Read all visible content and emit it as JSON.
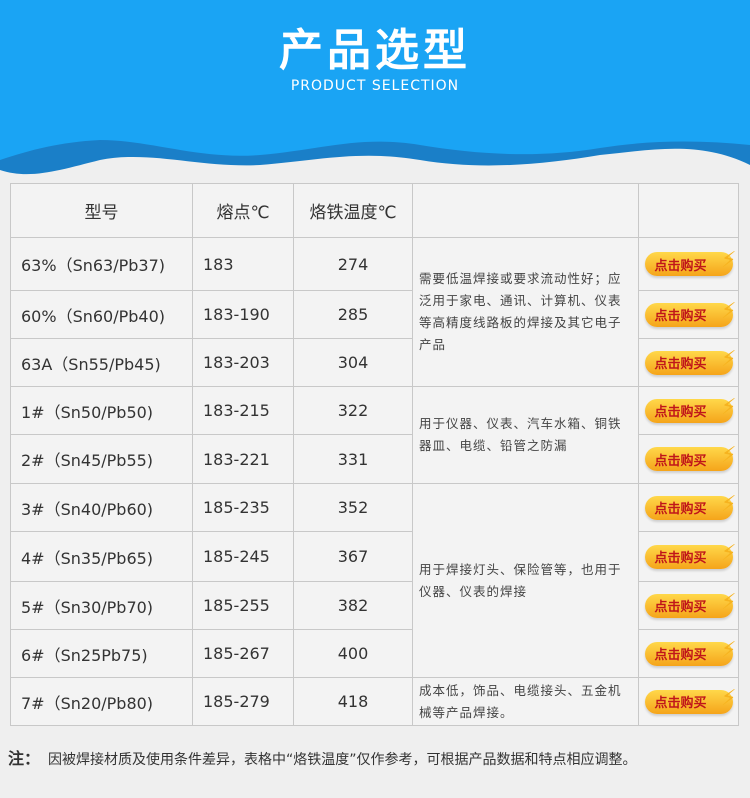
{
  "header": {
    "title": "产品选型",
    "subtitle": "PRODUCT SELECTION"
  },
  "table": {
    "headers": [
      "型号",
      "熔点℃",
      "烙铁温度℃",
      ""
    ],
    "buy_label": "点击购买",
    "rows": [
      [
        "63%（Sn63/Pb37)",
        "183",
        "274"
      ],
      [
        "60%（Sn60/Pb40)",
        "183-190",
        "285"
      ],
      [
        "63A（Sn55/Pb45)",
        "183-203",
        "304"
      ],
      [
        "1#（Sn50/Pb50)",
        "183-215",
        "322"
      ],
      [
        "2#（Sn45/Pb55)",
        "183-221",
        "331"
      ],
      [
        "3#（Sn40/Pb60)",
        "185-235",
        "352"
      ],
      [
        "4#（Sn35/Pb65)",
        "185-245",
        "367"
      ],
      [
        "5#（Sn30/Pb70)",
        "185-255",
        "382"
      ],
      [
        "6#（Sn25Pb75)",
        "185-267",
        "400"
      ],
      [
        "7#（Sn20/Pb80)",
        "185-279",
        "418"
      ]
    ],
    "uses": [
      "需要低温焊接或要求流动性好；应泛用于家电、通讯、计算机、仪表等高精度线路板的焊接及其它电子产品",
      "用于仪器、仪表、汽车水箱、铜铁器皿、电缆、铅管之防漏",
      "用于焊接灯头、保险管等，也用于仪器、仪表的焊接",
      "成本低，饰品、电缆接头、五金机械等产品焊接。"
    ]
  },
  "note": {
    "label": "注：",
    "text": "因被焊接材质及使用条件差异，表格中“烙铁温度”仅作参考，可根据产品数据和特点相应调整。"
  },
  "colors": {
    "banner": "#1aa4f4",
    "wave": "#1a7fc8",
    "button": "#f5b51f",
    "button_text": "#c0161a"
  }
}
